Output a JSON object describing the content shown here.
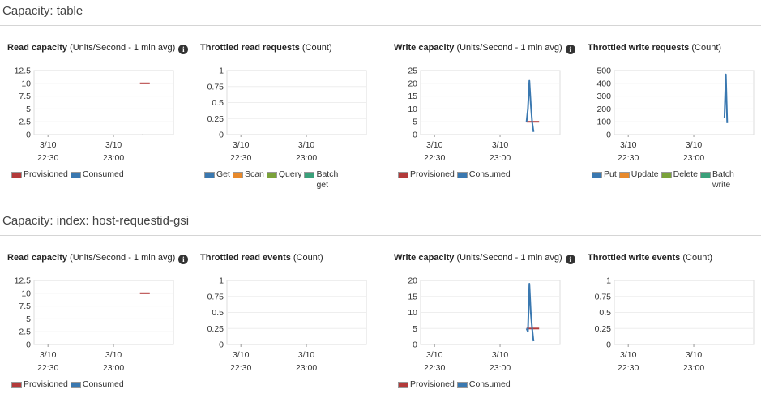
{
  "sections": [
    {
      "title": "Capacity: table",
      "panels": [
        {
          "title": "Read capacity",
          "unit": "(Units/Second - 1 min avg)",
          "info": true,
          "legend": [
            {
              "label": "Provisioned",
              "color": "#b33a3a"
            },
            {
              "label": "Consumed",
              "color": "#3a78b0"
            }
          ]
        },
        {
          "title": "Throttled read requests",
          "unit": "(Count)",
          "info": false,
          "legend": [
            {
              "label": "Get",
              "color": "#3a78b0"
            },
            {
              "label": "Scan",
              "color": "#e8892b"
            },
            {
              "label": "Query",
              "color": "#7aa23a"
            },
            {
              "label": "Batch get",
              "color": "#3aa07a"
            }
          ]
        },
        {
          "title": "Write capacity",
          "unit": "(Units/Second - 1 min avg)",
          "info": true,
          "legend": [
            {
              "label": "Provisioned",
              "color": "#b33a3a"
            },
            {
              "label": "Consumed",
              "color": "#3a78b0"
            }
          ]
        },
        {
          "title": "Throttled write requests",
          "unit": "(Count)",
          "info": false,
          "legend": [
            {
              "label": "Put",
              "color": "#3a78b0"
            },
            {
              "label": "Update",
              "color": "#e8892b"
            },
            {
              "label": "Delete",
              "color": "#7aa23a"
            },
            {
              "label": "Batch write",
              "color": "#3aa07a"
            }
          ]
        }
      ]
    },
    {
      "title": "Capacity: index: host-requestid-gsi",
      "panels": [
        {
          "title": "Read capacity",
          "unit": "(Units/Second - 1 min avg)",
          "info": true,
          "legend": [
            {
              "label": "Provisioned",
              "color": "#b33a3a"
            },
            {
              "label": "Consumed",
              "color": "#3a78b0"
            }
          ]
        },
        {
          "title": "Throttled read events",
          "unit": "(Count)",
          "info": false,
          "legend": []
        },
        {
          "title": "Write capacity",
          "unit": "(Units/Second - 1 min avg)",
          "info": true,
          "legend": [
            {
              "label": "Provisioned",
              "color": "#b33a3a"
            },
            {
              "label": "Consumed",
              "color": "#3a78b0"
            }
          ]
        },
        {
          "title": "Throttled write events",
          "unit": "(Count)",
          "info": false,
          "legend": []
        }
      ]
    }
  ],
  "chart_data": [
    {
      "type": "line",
      "title": "Read capacity (Units/Second - 1 min avg)",
      "x_ticks": [
        "3/10 22:30",
        "3/10 23:00"
      ],
      "xrange_minutes": [
        0,
        100
      ],
      "y_ticks": [
        "0",
        "2.5",
        "5",
        "7.5",
        "10",
        "12.5"
      ],
      "ylim": [
        0,
        12.5
      ],
      "series": [
        {
          "name": "Provisioned",
          "color": "#b33a3a",
          "x": [
            76,
            83
          ],
          "values": [
            10,
            10
          ]
        },
        {
          "name": "Consumed",
          "color": "#3a78b0",
          "x": [
            78
          ],
          "values": [
            0
          ]
        }
      ]
    },
    {
      "type": "line",
      "title": "Throttled read requests (Count)",
      "x_ticks": [
        "3/10 22:30",
        "3/10 23:00"
      ],
      "xrange_minutes": [
        0,
        100
      ],
      "y_ticks": [
        "0",
        "0.25",
        "0.5",
        "0.75",
        "1"
      ],
      "ylim": [
        0,
        1
      ],
      "series": [
        {
          "name": "Get",
          "values": []
        },
        {
          "name": "Scan",
          "values": []
        },
        {
          "name": "Query",
          "values": []
        },
        {
          "name": "Batch get",
          "values": []
        }
      ]
    },
    {
      "type": "line",
      "title": "Write capacity (Units/Second - 1 min avg)",
      "x_ticks": [
        "3/10 22:30",
        "3/10 23:00"
      ],
      "xrange_minutes": [
        0,
        100
      ],
      "y_ticks": [
        "0",
        "5",
        "10",
        "15",
        "20",
        "25"
      ],
      "ylim": [
        0,
        25
      ],
      "series": [
        {
          "name": "Provisioned",
          "color": "#b33a3a",
          "x": [
            76,
            85
          ],
          "values": [
            5,
            5
          ]
        },
        {
          "name": "Consumed",
          "color": "#3a78b0",
          "x": [
            76,
            77,
            78,
            79,
            80,
            81
          ],
          "values": [
            5,
            10,
            21,
            12,
            5,
            1
          ]
        }
      ]
    },
    {
      "type": "line",
      "title": "Throttled write requests (Count)",
      "x_ticks": [
        "3/10 22:30",
        "3/10 23:00"
      ],
      "xrange_minutes": [
        0,
        100
      ],
      "y_ticks": [
        "0",
        "100",
        "200",
        "300",
        "400",
        "500"
      ],
      "ylim": [
        0,
        500
      ],
      "series": [
        {
          "name": "Put",
          "color": "#3a78b0",
          "x": [
            79,
            80,
            81
          ],
          "values": [
            130,
            470,
            90
          ]
        }
      ]
    },
    {
      "type": "line",
      "title": "Read capacity (Units/Second - 1 min avg)",
      "x_ticks": [
        "3/10 22:30",
        "3/10 23:00"
      ],
      "xrange_minutes": [
        0,
        100
      ],
      "y_ticks": [
        "0",
        "2.5",
        "5",
        "7.5",
        "10",
        "12.5"
      ],
      "ylim": [
        0,
        12.5
      ],
      "series": [
        {
          "name": "Provisioned",
          "color": "#b33a3a",
          "x": [
            76,
            83
          ],
          "values": [
            10,
            10
          ]
        },
        {
          "name": "Consumed",
          "color": "#3a78b0",
          "values": []
        }
      ]
    },
    {
      "type": "line",
      "title": "Throttled read events (Count)",
      "x_ticks": [
        "3/10 22:30",
        "3/10 23:00"
      ],
      "xrange_minutes": [
        0,
        100
      ],
      "y_ticks": [
        "0",
        "0.25",
        "0.5",
        "0.75",
        "1"
      ],
      "ylim": [
        0,
        1
      ],
      "series": []
    },
    {
      "type": "line",
      "title": "Write capacity (Units/Second - 1 min avg)",
      "x_ticks": [
        "3/10 22:30",
        "3/10 23:00"
      ],
      "xrange_minutes": [
        0,
        100
      ],
      "y_ticks": [
        "0",
        "5",
        "10",
        "15",
        "20"
      ],
      "ylim": [
        0,
        20
      ],
      "series": [
        {
          "name": "Provisioned",
          "color": "#b33a3a",
          "x": [
            76,
            85
          ],
          "values": [
            5,
            5
          ]
        },
        {
          "name": "Consumed",
          "color": "#3a78b0",
          "x": [
            76,
            77,
            78,
            79,
            80,
            81
          ],
          "values": [
            5,
            4,
            19,
            10,
            5,
            1
          ]
        }
      ]
    },
    {
      "type": "line",
      "title": "Throttled write events (Count)",
      "x_ticks": [
        "3/10 22:30",
        "3/10 23:00"
      ],
      "xrange_minutes": [
        0,
        100
      ],
      "y_ticks": [
        "0",
        "0.25",
        "0.5",
        "0.75",
        "1"
      ],
      "ylim": [
        0,
        1
      ],
      "series": []
    }
  ]
}
